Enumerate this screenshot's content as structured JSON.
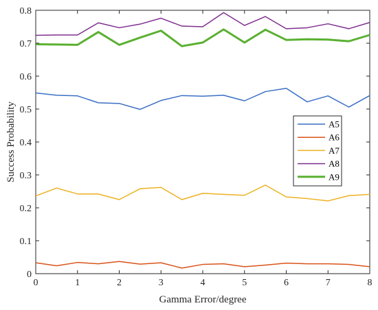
{
  "chart_data": {
    "type": "line",
    "title": "",
    "xlabel": "Gamma Error/degree",
    "ylabel": "Success Probability",
    "xlim": [
      0,
      8
    ],
    "ylim": [
      0,
      0.8
    ],
    "xticks": [
      0,
      1,
      2,
      3,
      4,
      5,
      6,
      7,
      8
    ],
    "xtick_labels": [
      "0",
      "1",
      "2",
      "3",
      "4",
      "5",
      "6",
      "7",
      "8"
    ],
    "yticks": [
      0,
      0.1,
      0.2,
      0.3,
      0.4,
      0.5,
      0.6,
      0.7,
      0.8
    ],
    "ytick_labels": [
      "0",
      "0.1",
      "0.2",
      "0.3",
      "0.4",
      "0.5",
      "0.6",
      "0.7",
      "0.8"
    ],
    "grid": false,
    "legend_position": "right",
    "x": [
      0,
      0.5,
      1,
      1.5,
      2,
      2.5,
      3,
      3.5,
      4,
      4.5,
      5,
      5.5,
      6,
      6.5,
      7,
      7.5,
      8
    ],
    "series": [
      {
        "name": "A5",
        "color": "#3a6fc4",
        "width": 1.5,
        "values": [
          0.549,
          0.542,
          0.54,
          0.519,
          0.517,
          0.499,
          0.526,
          0.541,
          0.539,
          0.542,
          0.525,
          0.553,
          0.563,
          0.522,
          0.54,
          0.506,
          0.541
        ]
      },
      {
        "name": "A6",
        "color": "#d95319",
        "width": 1.5,
        "values": [
          0.033,
          0.024,
          0.034,
          0.03,
          0.037,
          0.029,
          0.033,
          0.017,
          0.028,
          0.03,
          0.021,
          0.026,
          0.032,
          0.03,
          0.03,
          0.028,
          0.021
        ]
      },
      {
        "name": "A7",
        "color": "#edb120",
        "width": 1.5,
        "values": [
          0.236,
          0.26,
          0.242,
          0.242,
          0.225,
          0.258,
          0.262,
          0.225,
          0.244,
          0.241,
          0.238,
          0.269,
          0.233,
          0.228,
          0.221,
          0.237,
          0.241
        ]
      },
      {
        "name": "A8",
        "color": "#7e2f8e",
        "width": 1.5,
        "values": [
          0.724,
          0.725,
          0.725,
          0.762,
          0.747,
          0.758,
          0.776,
          0.752,
          0.75,
          0.793,
          0.754,
          0.781,
          0.744,
          0.747,
          0.759,
          0.744,
          0.763
        ]
      },
      {
        "name": "A9",
        "color": "#5ab031",
        "width": 3,
        "values": [
          0.697,
          0.696,
          0.695,
          0.734,
          0.695,
          0.717,
          0.738,
          0.691,
          0.702,
          0.742,
          0.702,
          0.741,
          0.71,
          0.712,
          0.711,
          0.706,
          0.725
        ]
      }
    ]
  }
}
